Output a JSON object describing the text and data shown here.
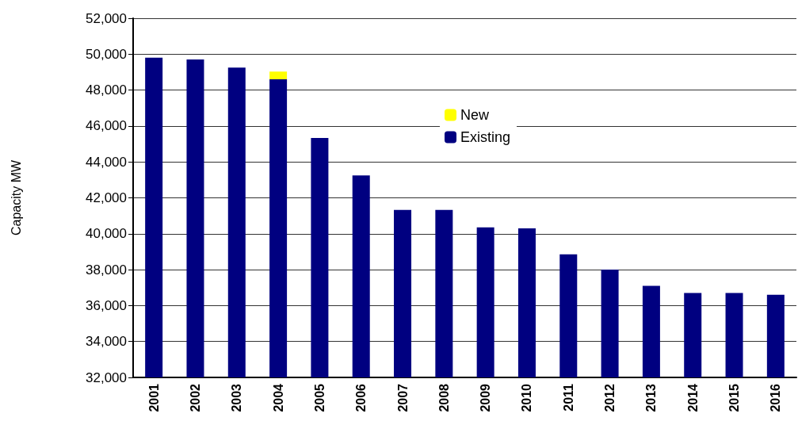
{
  "chart_data": {
    "type": "bar",
    "ylabel": "Capacity MW",
    "categories": [
      "2001",
      "2002",
      "2003",
      "2004",
      "2005",
      "2006",
      "2007",
      "2008",
      "2009",
      "2010",
      "2011",
      "2012",
      "2013",
      "2014",
      "2015",
      "2016"
    ],
    "series": [
      {
        "name": "Existing",
        "color": "#000080",
        "values": [
          49800,
          49700,
          49250,
          48600,
          45330,
          43250,
          41330,
          41330,
          40350,
          40300,
          38850,
          38000,
          37100,
          36700,
          36700,
          36600
        ]
      },
      {
        "name": "New",
        "color": "#ffff00",
        "values": [
          null,
          null,
          null,
          430,
          null,
          null,
          null,
          null,
          null,
          null,
          null,
          null,
          null,
          null,
          null,
          null
        ],
        "base": [
          null,
          null,
          null,
          48600,
          null,
          null,
          null,
          null,
          null,
          null,
          null,
          null,
          null,
          null,
          null,
          null
        ]
      }
    ],
    "ylim": [
      32000,
      52000
    ],
    "yticks": [
      {
        "value": 32000,
        "label": "32,000"
      },
      {
        "value": 34000,
        "label": "34,000"
      },
      {
        "value": 36000,
        "label": "36,000"
      },
      {
        "value": 38000,
        "label": "38,000"
      },
      {
        "value": 40000,
        "label": "40,000"
      },
      {
        "value": 42000,
        "label": "42,000"
      },
      {
        "value": 44000,
        "label": "44,000"
      },
      {
        "value": 46000,
        "label": "46,000"
      },
      {
        "value": 48000,
        "label": "48,000"
      },
      {
        "value": 50000,
        "label": "50,000"
      },
      {
        "value": 52000,
        "label": "52,000"
      }
    ],
    "grid": "y",
    "legend": "top"
  }
}
